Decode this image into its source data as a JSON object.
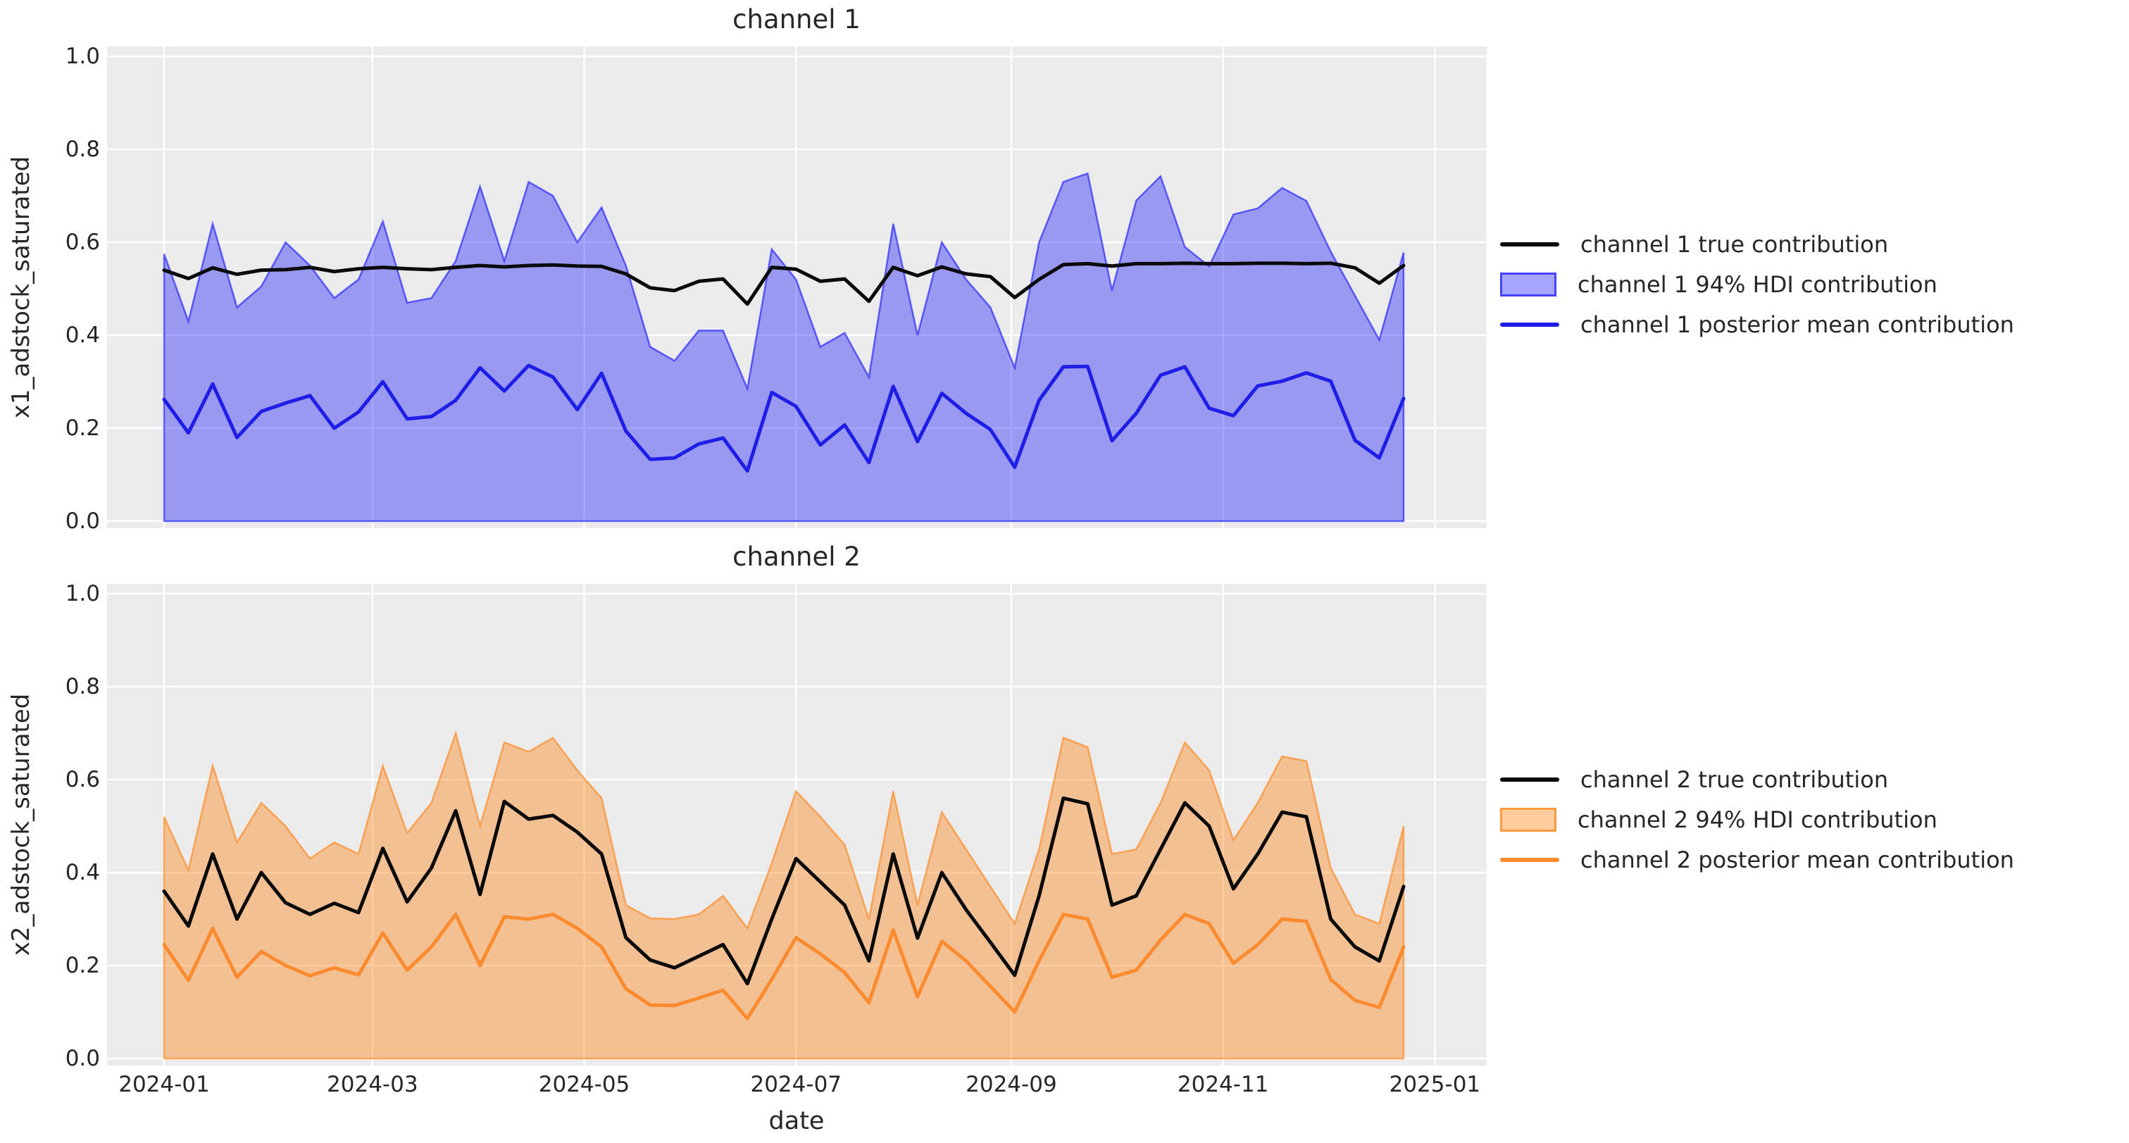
{
  "style": {
    "figure_background": "#ffffff",
    "plot_background": "#ebebeb",
    "grid_color": "#ffffff",
    "text_color": "#262626",
    "channel1_color": "#0000ff",
    "channel2_color": "#ff7f0e",
    "true_line_color": "#0a0a0a"
  },
  "chart_data": [
    {
      "type": "line",
      "title": "channel 1",
      "xlabel": "date",
      "ylabel": "x1_adstock_saturated",
      "ylim": [
        0.0,
        1.0
      ],
      "grid": true,
      "legend_position": "center right, outside",
      "x_start": "2024-01-01",
      "x_step_days": 7,
      "n_points": 52,
      "x": [
        "2024-01-01",
        "2024-01-08",
        "2024-01-15",
        "2024-01-22",
        "2024-01-29",
        "2024-02-05",
        "2024-02-12",
        "2024-02-19",
        "2024-02-26",
        "2024-03-04",
        "2024-03-11",
        "2024-03-18",
        "2024-03-25",
        "2024-04-01",
        "2024-04-08",
        "2024-04-15",
        "2024-04-22",
        "2024-04-29",
        "2024-05-06",
        "2024-05-13",
        "2024-05-20",
        "2024-05-27",
        "2024-06-03",
        "2024-06-10",
        "2024-06-17",
        "2024-06-24",
        "2024-07-01",
        "2024-07-08",
        "2024-07-15",
        "2024-07-22",
        "2024-07-29",
        "2024-08-05",
        "2024-08-12",
        "2024-08-19",
        "2024-08-26",
        "2024-09-02",
        "2024-09-09",
        "2024-09-16",
        "2024-09-23",
        "2024-09-30",
        "2024-10-07",
        "2024-10-14",
        "2024-10-21",
        "2024-10-28",
        "2024-11-04",
        "2024-11-11",
        "2024-11-18",
        "2024-11-25",
        "2024-12-02",
        "2024-12-09",
        "2024-12-16",
        "2024-12-23"
      ],
      "x_ticks": [
        {
          "label": "2024-01",
          "day": 0
        },
        {
          "label": "2024-03",
          "day": 60
        },
        {
          "label": "2024-05",
          "day": 121
        },
        {
          "label": "2024-07",
          "day": 182
        },
        {
          "label": "2024-09",
          "day": 244
        },
        {
          "label": "2024-11",
          "day": 305
        },
        {
          "label": "2025-01",
          "day": 366
        }
      ],
      "y_ticks": [
        {
          "label": "0.0",
          "value": 0.0
        },
        {
          "label": "0.2",
          "value": 0.2
        },
        {
          "label": "0.4",
          "value": 0.4
        },
        {
          "label": "0.6",
          "value": 0.6
        },
        {
          "label": "0.8",
          "value": 0.8
        },
        {
          "label": "1.0",
          "value": 1.0
        }
      ],
      "series": [
        {
          "name": "channel 1 true contribution",
          "kind": "line",
          "color": "#0a0a0a",
          "values": [
            0.54,
            0.522,
            0.545,
            0.531,
            0.54,
            0.541,
            0.546,
            0.537,
            0.543,
            0.546,
            0.543,
            0.541,
            0.546,
            0.55,
            0.547,
            0.55,
            0.551,
            0.549,
            0.548,
            0.532,
            0.502,
            0.496,
            0.516,
            0.521,
            0.467,
            0.546,
            0.542,
            0.516,
            0.521,
            0.473,
            0.546,
            0.528,
            0.547,
            0.532,
            0.526,
            0.481,
            0.52,
            0.552,
            0.554,
            0.549,
            0.554,
            0.554,
            0.555,
            0.554,
            0.554,
            0.555,
            0.555,
            0.554,
            0.555,
            0.545,
            0.512,
            0.55
          ]
        },
        {
          "name": "channel 1 94% HDI contribution",
          "kind": "band",
          "color": "#0000ff",
          "fill_alpha": 0.35,
          "lower": 0.0,
          "upper": [
            0.575,
            0.43,
            0.64,
            0.46,
            0.505,
            0.6,
            0.55,
            0.48,
            0.52,
            0.645,
            0.47,
            0.48,
            0.56,
            0.72,
            0.56,
            0.73,
            0.7,
            0.6,
            0.675,
            0.55,
            0.375,
            0.345,
            0.41,
            0.41,
            0.285,
            0.585,
            0.52,
            0.375,
            0.405,
            0.31,
            0.64,
            0.4,
            0.6,
            0.52,
            0.46,
            0.33,
            0.6,
            0.73,
            0.748,
            0.496,
            0.69,
            0.742,
            0.59,
            0.548,
            0.66,
            0.673,
            0.717,
            0.689,
            0.58,
            0.485,
            0.39,
            0.578
          ]
        },
        {
          "name": "channel 1 posterior mean contribution",
          "kind": "line",
          "color": "#1e1ee6",
          "values": [
            0.262,
            0.19,
            0.295,
            0.18,
            0.236,
            0.254,
            0.27,
            0.2,
            0.235,
            0.3,
            0.22,
            0.225,
            0.26,
            0.33,
            0.28,
            0.335,
            0.31,
            0.24,
            0.318,
            0.194,
            0.133,
            0.136,
            0.166,
            0.179,
            0.108,
            0.277,
            0.247,
            0.164,
            0.207,
            0.126,
            0.29,
            0.171,
            0.275,
            0.232,
            0.197,
            0.116,
            0.26,
            0.332,
            0.333,
            0.173,
            0.232,
            0.314,
            0.332,
            0.243,
            0.227,
            0.291,
            0.301,
            0.319,
            0.301,
            0.174,
            0.136,
            0.264
          ]
        }
      ]
    },
    {
      "type": "line",
      "title": "channel 2",
      "xlabel": "date",
      "ylabel": "x2_adstock_saturated",
      "ylim": [
        0.0,
        1.0
      ],
      "grid": true,
      "legend_position": "center right, outside",
      "x_start": "2024-01-01",
      "x_step_days": 7,
      "n_points": 52,
      "x": [
        "2024-01-01",
        "2024-01-08",
        "2024-01-15",
        "2024-01-22",
        "2024-01-29",
        "2024-02-05",
        "2024-02-12",
        "2024-02-19",
        "2024-02-26",
        "2024-03-04",
        "2024-03-11",
        "2024-03-18",
        "2024-03-25",
        "2024-04-01",
        "2024-04-08",
        "2024-04-15",
        "2024-04-22",
        "2024-04-29",
        "2024-05-06",
        "2024-05-13",
        "2024-05-20",
        "2024-05-27",
        "2024-06-03",
        "2024-06-10",
        "2024-06-17",
        "2024-06-24",
        "2024-07-01",
        "2024-07-08",
        "2024-07-15",
        "2024-07-22",
        "2024-07-29",
        "2024-08-05",
        "2024-08-12",
        "2024-08-19",
        "2024-08-26",
        "2024-09-02",
        "2024-09-09",
        "2024-09-16",
        "2024-09-23",
        "2024-09-30",
        "2024-10-07",
        "2024-10-14",
        "2024-10-21",
        "2024-10-28",
        "2024-11-04",
        "2024-11-11",
        "2024-11-18",
        "2024-11-25",
        "2024-12-02",
        "2024-12-09",
        "2024-12-16",
        "2024-12-23"
      ],
      "x_ticks": [
        {
          "label": "2024-01",
          "day": 0
        },
        {
          "label": "2024-03",
          "day": 60
        },
        {
          "label": "2024-05",
          "day": 121
        },
        {
          "label": "2024-07",
          "day": 182
        },
        {
          "label": "2024-09",
          "day": 244
        },
        {
          "label": "2024-11",
          "day": 305
        },
        {
          "label": "2025-01",
          "day": 366
        }
      ],
      "y_ticks": [
        {
          "label": "0.0",
          "value": 0.0
        },
        {
          "label": "0.2",
          "value": 0.2
        },
        {
          "label": "0.4",
          "value": 0.4
        },
        {
          "label": "0.6",
          "value": 0.6
        },
        {
          "label": "0.8",
          "value": 0.8
        },
        {
          "label": "1.0",
          "value": 1.0
        }
      ],
      "series": [
        {
          "name": "channel 2 true contribution",
          "kind": "line",
          "color": "#0a0a0a",
          "values": [
            0.36,
            0.285,
            0.44,
            0.3,
            0.4,
            0.335,
            0.31,
            0.334,
            0.314,
            0.452,
            0.337,
            0.41,
            0.533,
            0.353,
            0.553,
            0.515,
            0.523,
            0.487,
            0.44,
            0.26,
            0.212,
            0.195,
            0.22,
            0.245,
            0.161,
            0.3,
            0.43,
            0.38,
            0.33,
            0.21,
            0.44,
            0.259,
            0.4,
            0.32,
            0.25,
            0.179,
            0.35,
            0.56,
            0.548,
            0.33,
            0.35,
            0.45,
            0.55,
            0.5,
            0.365,
            0.44,
            0.53,
            0.52,
            0.3,
            0.24,
            0.21,
            0.37
          ]
        },
        {
          "name": "channel 2 94% HDI contribution",
          "kind": "band",
          "color": "#ff7f0e",
          "fill_alpha": 0.4,
          "lower": 0.0,
          "upper": [
            0.52,
            0.405,
            0.63,
            0.465,
            0.55,
            0.5,
            0.43,
            0.465,
            0.44,
            0.63,
            0.485,
            0.55,
            0.7,
            0.5,
            0.68,
            0.66,
            0.69,
            0.62,
            0.56,
            0.33,
            0.302,
            0.3,
            0.31,
            0.35,
            0.28,
            0.42,
            0.575,
            0.52,
            0.46,
            0.3,
            0.575,
            0.33,
            0.53,
            0.45,
            0.37,
            0.29,
            0.45,
            0.69,
            0.67,
            0.44,
            0.45,
            0.55,
            0.68,
            0.62,
            0.47,
            0.55,
            0.65,
            0.64,
            0.41,
            0.31,
            0.29,
            0.5
          ]
        },
        {
          "name": "channel 2 posterior mean contribution",
          "kind": "line",
          "color": "#fb8b2e",
          "values": [
            0.245,
            0.168,
            0.28,
            0.175,
            0.23,
            0.2,
            0.178,
            0.195,
            0.18,
            0.27,
            0.19,
            0.24,
            0.31,
            0.2,
            0.305,
            0.3,
            0.31,
            0.28,
            0.24,
            0.15,
            0.115,
            0.114,
            0.13,
            0.147,
            0.086,
            0.17,
            0.26,
            0.225,
            0.185,
            0.12,
            0.276,
            0.133,
            0.252,
            0.21,
            0.155,
            0.1,
            0.21,
            0.31,
            0.3,
            0.175,
            0.19,
            0.255,
            0.31,
            0.29,
            0.205,
            0.245,
            0.3,
            0.295,
            0.17,
            0.125,
            0.11,
            0.24
          ]
        }
      ]
    }
  ]
}
